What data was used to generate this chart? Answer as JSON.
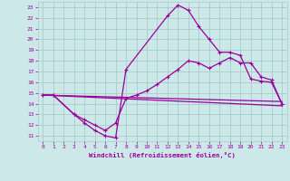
{
  "xlabel": "Windchill (Refroidissement éolien,°C)",
  "xlim": [
    -0.5,
    23.5
  ],
  "ylim": [
    10.5,
    23.5
  ],
  "xticks": [
    0,
    1,
    2,
    3,
    4,
    5,
    6,
    7,
    8,
    9,
    10,
    11,
    12,
    13,
    14,
    15,
    16,
    17,
    18,
    19,
    20,
    21,
    22,
    23
  ],
  "yticks": [
    11,
    12,
    13,
    14,
    15,
    16,
    17,
    18,
    19,
    20,
    21,
    22,
    23
  ],
  "bg_color": "#cce8e8",
  "grid_color": "#aacccc",
  "line_color": "#990099",
  "line1_x": [
    0,
    1,
    3,
    4,
    5,
    6,
    7,
    8,
    12,
    13,
    14,
    15,
    16,
    17,
    18,
    19,
    20,
    21,
    22,
    23
  ],
  "line1_y": [
    14.8,
    14.8,
    13.0,
    12.2,
    11.5,
    11.0,
    10.8,
    17.2,
    22.2,
    23.2,
    22.7,
    21.2,
    20.0,
    18.8,
    18.8,
    18.5,
    16.3,
    16.1,
    16.0,
    14.0
  ],
  "line2_x": [
    0,
    1,
    3,
    4,
    5,
    6,
    7,
    8,
    9,
    10,
    11,
    12,
    13,
    14,
    15,
    16,
    17,
    18,
    19,
    20,
    21,
    22,
    23
  ],
  "line2_y": [
    14.8,
    14.8,
    13.0,
    12.5,
    12.0,
    11.5,
    12.2,
    14.5,
    14.8,
    15.2,
    15.8,
    16.5,
    17.2,
    18.0,
    17.8,
    17.3,
    17.8,
    18.3,
    17.8,
    17.8,
    16.5,
    16.2,
    14.0
  ],
  "line3_x": [
    0,
    23
  ],
  "line3_y": [
    14.8,
    14.2
  ],
  "line4_x": [
    0,
    23
  ],
  "line4_y": [
    14.8,
    13.8
  ]
}
